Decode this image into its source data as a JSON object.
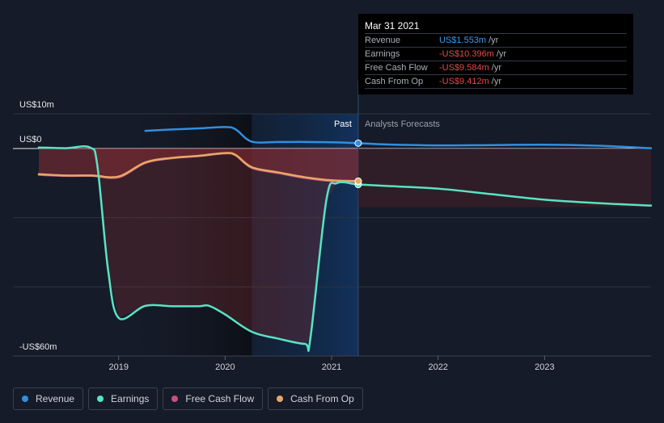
{
  "chart_data": {
    "type": "line",
    "title": "",
    "y_axis_labels": [
      "US$10m",
      "US$0",
      "-US$60m"
    ],
    "ylim": [
      -60,
      10
    ],
    "xlim": [
      2018.25,
      2024.0
    ],
    "x_ticks": [
      "2019",
      "2020",
      "2021",
      "2022",
      "2023"
    ],
    "x_tick_values": [
      2019,
      2020,
      2021,
      2022,
      2023
    ],
    "divider_x": 2021.25,
    "past_label": "Past",
    "forecast_label": "Analysts Forecasts",
    "series": [
      {
        "name": "Revenue",
        "color": "#2f8fe0",
        "points": [
          [
            2019.25,
            5.1
          ],
          [
            2019.5,
            5.5
          ],
          [
            2019.75,
            5.8
          ],
          [
            2020.0,
            6.2
          ],
          [
            2020.1,
            5.5
          ],
          [
            2020.25,
            2.0
          ],
          [
            2020.5,
            1.9
          ],
          [
            2020.75,
            1.9
          ],
          [
            2021.0,
            1.8
          ],
          [
            2021.25,
            1.553
          ],
          [
            2021.5,
            1.2
          ],
          [
            2022.0,
            0.9
          ],
          [
            2022.5,
            1.0
          ],
          [
            2023.0,
            1.1
          ],
          [
            2023.5,
            0.8
          ],
          [
            2024.0,
            0.1
          ]
        ]
      },
      {
        "name": "Earnings",
        "color": "#59e3c4",
        "points": [
          [
            2018.25,
            0.3
          ],
          [
            2018.5,
            0.1
          ],
          [
            2018.73,
            0.3
          ],
          [
            2018.8,
            -5
          ],
          [
            2018.9,
            -35
          ],
          [
            2019.0,
            -49
          ],
          [
            2019.25,
            -45.5
          ],
          [
            2019.5,
            -45.6
          ],
          [
            2019.75,
            -45.6
          ],
          [
            2019.85,
            -45.5
          ],
          [
            2020.0,
            -48
          ],
          [
            2020.25,
            -53
          ],
          [
            2020.5,
            -55
          ],
          [
            2020.75,
            -56.5
          ],
          [
            2020.8,
            -55
          ],
          [
            2020.95,
            -15
          ],
          [
            2021.05,
            -10
          ],
          [
            2021.25,
            -10.396
          ],
          [
            2021.5,
            -10.8
          ],
          [
            2022.0,
            -11.6
          ],
          [
            2022.5,
            -13.2
          ],
          [
            2023.0,
            -14.8
          ],
          [
            2023.5,
            -15.8
          ],
          [
            2024.0,
            -16.5
          ]
        ]
      },
      {
        "name": "Free Cash Flow",
        "color": "#c9517d",
        "points": [
          [
            2018.25,
            -7.6
          ],
          [
            2018.5,
            -7.9
          ],
          [
            2018.75,
            -7.9
          ],
          [
            2019.0,
            -8.3
          ],
          [
            2019.25,
            -4.2
          ],
          [
            2019.5,
            -2.8
          ],
          [
            2019.75,
            -2.2
          ],
          [
            2020.0,
            -1.4
          ],
          [
            2020.1,
            -2.0
          ],
          [
            2020.25,
            -5.6
          ],
          [
            2020.5,
            -7.1
          ],
          [
            2020.75,
            -8.5
          ],
          [
            2021.0,
            -9.4
          ],
          [
            2021.25,
            -9.584
          ]
        ]
      },
      {
        "name": "Cash From Op",
        "color": "#e8a767",
        "points": [
          [
            2018.25,
            -7.4
          ],
          [
            2018.5,
            -7.8
          ],
          [
            2018.75,
            -7.8
          ],
          [
            2019.0,
            -8.1
          ],
          [
            2019.25,
            -4.0
          ],
          [
            2019.5,
            -2.7
          ],
          [
            2019.75,
            -2.1
          ],
          [
            2020.0,
            -1.3
          ],
          [
            2020.1,
            -1.9
          ],
          [
            2020.25,
            -5.4
          ],
          [
            2020.5,
            -6.9
          ],
          [
            2020.75,
            -8.3
          ],
          [
            2021.0,
            -9.2
          ],
          [
            2021.25,
            -9.412
          ]
        ]
      }
    ]
  },
  "tooltip": {
    "date": "Mar 31 2021",
    "rows": [
      {
        "label": "Revenue",
        "value": "US$1.553m",
        "unit": "/yr",
        "color": "#3d9be9"
      },
      {
        "label": "Earnings",
        "value": "-US$10.396m",
        "unit": "/yr",
        "color": "#e8474c"
      },
      {
        "label": "Free Cash Flow",
        "value": "-US$9.584m",
        "unit": "/yr",
        "color": "#e8474c"
      },
      {
        "label": "Cash From Op",
        "value": "-US$9.412m",
        "unit": "/yr",
        "color": "#e8474c"
      }
    ]
  },
  "legend": [
    {
      "label": "Revenue",
      "color": "#2f8fe0"
    },
    {
      "label": "Earnings",
      "color": "#59e3c4"
    },
    {
      "label": "Free Cash Flow",
      "color": "#c9517d"
    },
    {
      "label": "Cash From Op",
      "color": "#e8a767"
    }
  ]
}
